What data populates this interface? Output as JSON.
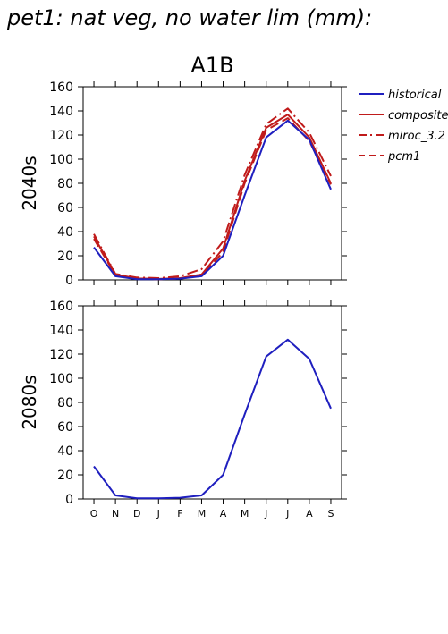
{
  "title": "pet1: nat veg, no water lim (mm):",
  "colors": {
    "historical": "#1f1fbf",
    "future": "#c01b1b",
    "axis": "#000000"
  },
  "chart_data": [
    {
      "type": "line",
      "title": "A1B",
      "ylabel": "2040s",
      "xlabel": "",
      "ylim": [
        0,
        160
      ],
      "y_ticks": [
        0,
        20,
        40,
        60,
        80,
        100,
        120,
        140,
        160
      ],
      "categories": [
        "O",
        "N",
        "D",
        "J",
        "F",
        "M",
        "A",
        "M",
        "J",
        "J",
        "A",
        "S"
      ],
      "grid": false,
      "legend_position": "right",
      "series": [
        {
          "name": "historical",
          "style": "solid",
          "color": "#1f1fbf",
          "values": [
            27,
            3,
            0.5,
            0.5,
            1,
            3,
            20,
            70,
            118,
            132,
            116,
            75
          ]
        },
        {
          "name": "composite",
          "style": "solid",
          "color": "#c01b1b",
          "values": [
            36,
            4.5,
            1.2,
            0.8,
            1.5,
            4.5,
            26,
            82,
            126,
            137,
            118,
            80
          ]
        },
        {
          "name": "miroc_3.2",
          "style": "dashdot",
          "color": "#c01b1b",
          "values": [
            38,
            5,
            2,
            1.5,
            3,
            9,
            32,
            87,
            129,
            142,
            122,
            86
          ]
        },
        {
          "name": "pcm1",
          "style": "dashed",
          "color": "#c01b1b",
          "values": [
            34,
            4,
            1,
            0.5,
            1,
            3.5,
            23,
            80,
            124,
            134,
            115,
            79
          ]
        }
      ]
    },
    {
      "type": "line",
      "title": "",
      "ylabel": "2080s",
      "xlabel": "",
      "ylim": [
        0,
        160
      ],
      "y_ticks": [
        0,
        20,
        40,
        60,
        80,
        100,
        120,
        140,
        160
      ],
      "categories": [
        "O",
        "N",
        "D",
        "J",
        "F",
        "M",
        "A",
        "M",
        "J",
        "J",
        "A",
        "S"
      ],
      "grid": false,
      "series": [
        {
          "name": "historical",
          "style": "solid",
          "color": "#1f1fbf",
          "values": [
            27,
            3,
            0.5,
            0.5,
            1,
            3,
            20,
            70,
            118,
            132,
            116,
            75
          ]
        }
      ]
    }
  ]
}
